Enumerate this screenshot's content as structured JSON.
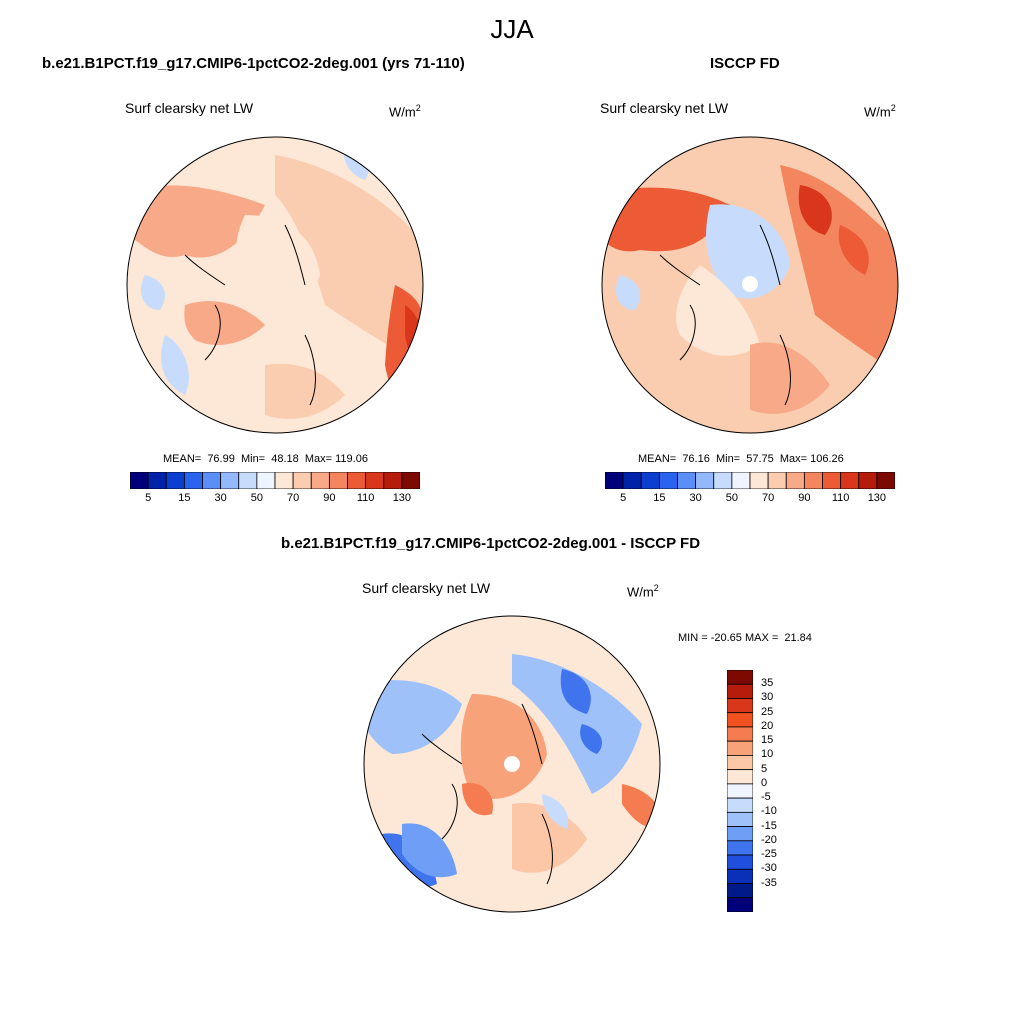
{
  "title": "JJA",
  "panels": [
    {
      "title": "b.e21.B1PCT.f19_g17.CMIP6-1pctCO2-2deg.001 (yrs 71-110)",
      "variable": "Surf clearsky net LW",
      "units_base": "W/m",
      "units_exp": "2",
      "stats": "MEAN=  76.99  Min=  48.18  Max= 119.06"
    },
    {
      "title": "ISCCP FD",
      "variable": "Surf clearsky net LW",
      "units_base": "W/m",
      "units_exp": "2",
      "stats": "MEAN=  76.16  Min=  57.75  Max= 106.26"
    },
    {
      "title": "b.e21.B1PCT.f19_g17.CMIP6-1pctCO2-2deg.001 - ISCCP FD",
      "variable": "Surf clearsky net LW",
      "units_base": "W/m",
      "units_exp": "2",
      "stats": "MIN = -20.65 MAX =  21.84"
    }
  ],
  "colorbar_abs": {
    "labels": [
      "5",
      "15",
      "30",
      "50",
      "70",
      "90",
      "110",
      "130"
    ],
    "colors": [
      "#00007a",
      "#0022a8",
      "#0a3fd0",
      "#2a63ee",
      "#5b8ff7",
      "#93b8fb",
      "#c7dcfd",
      "#eef5fe",
      "#fde7d6",
      "#fbcdb0",
      "#f8a988",
      "#f3855f",
      "#ec5a36",
      "#d9361b",
      "#b51c0c",
      "#7d0a02"
    ]
  },
  "colorbar_diff": {
    "labels": [
      "35",
      "30",
      "25",
      "20",
      "15",
      "10",
      "5",
      "0",
      "-5",
      "-10",
      "-15",
      "-20",
      "-25",
      "-30",
      "-35"
    ],
    "colors": [
      "#7d0a02",
      "#b51c0c",
      "#d9361b",
      "#f1501f",
      "#f47c50",
      "#f8a27a",
      "#fbc7a6",
      "#fde7d6",
      "#eef5fe",
      "#c7dcfd",
      "#9fc1fa",
      "#6e9ef5",
      "#3f74ee",
      "#1f4fdc",
      "#0a2fb8",
      "#001a8a",
      "#00007a"
    ]
  }
}
